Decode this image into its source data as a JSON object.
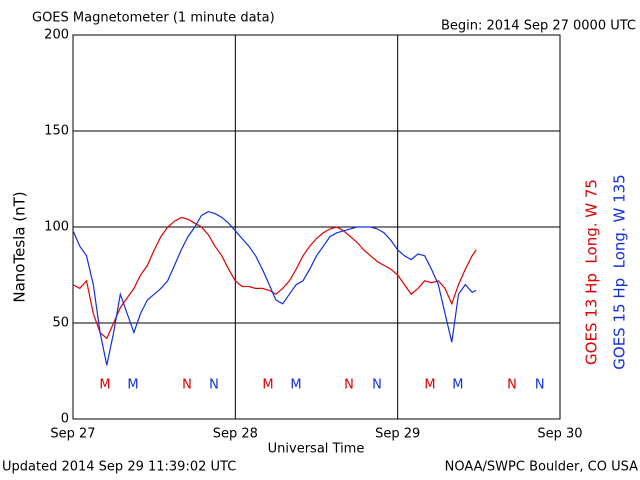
{
  "chart_data": {
    "type": "line",
    "title": "GOES Magnetometer (1 minute data)",
    "subtitle": "Begin:  2014 Sep 27 0000 UTC",
    "ylabel": "NanoTesla (nT)",
    "xlabel": "Universal Time",
    "footer_left": "Updated 2014 Sep 29 11:39:02 UTC",
    "footer_right": "NOAA/SWPC Boulder, CO USA",
    "xlim": [
      0,
      72
    ],
    "xticks": [
      {
        "value": 0,
        "label": "Sep 27"
      },
      {
        "value": 24,
        "label": "Sep 28"
      },
      {
        "value": 48,
        "label": "Sep 29"
      },
      {
        "value": 72,
        "label": "Sep 30"
      }
    ],
    "ylim": [
      0,
      200
    ],
    "yticks": [
      0,
      50,
      100,
      150,
      200
    ],
    "grid": true,
    "series": [
      {
        "name": "GOES 13 Hp  Long. W 75",
        "color": "#e00000",
        "x": [
          0,
          1,
          2,
          3,
          4,
          5,
          6,
          7,
          8,
          9,
          10,
          11,
          12,
          13,
          14,
          15,
          16,
          17,
          18,
          19,
          20,
          21,
          22,
          23,
          24,
          25,
          26,
          27,
          28,
          29,
          30,
          31,
          32,
          33,
          34,
          35,
          36,
          37,
          38,
          39,
          40,
          41,
          42,
          43,
          44,
          45,
          46,
          47,
          48,
          49,
          50,
          51,
          52,
          53,
          54,
          55,
          56,
          57,
          58,
          59,
          59.6
        ],
        "values": [
          70,
          68,
          72,
          55,
          45,
          42,
          50,
          58,
          63,
          68,
          75,
          80,
          88,
          95,
          100,
          103,
          105,
          104,
          102,
          100,
          96,
          90,
          85,
          78,
          72,
          69,
          69,
          68,
          68,
          67,
          65,
          68,
          72,
          78,
          85,
          90,
          94,
          97,
          99,
          100,
          98,
          95,
          92,
          88,
          85,
          82,
          80,
          78,
          75,
          70,
          65,
          68,
          72,
          71,
          72,
          68,
          60,
          70,
          78,
          85,
          88
        ]
      },
      {
        "name": "GOES 15 Hp  Long. W 135",
        "color": "#1030e0",
        "x": [
          0,
          1,
          2,
          3,
          4,
          5,
          6,
          7,
          8,
          9,
          10,
          11,
          12,
          13,
          14,
          15,
          16,
          17,
          18,
          19,
          20,
          21,
          22,
          23,
          24,
          25,
          26,
          27,
          28,
          29,
          30,
          31,
          32,
          33,
          34,
          35,
          36,
          37,
          38,
          39,
          40,
          41,
          42,
          43,
          44,
          45,
          46,
          47,
          48,
          49,
          50,
          51,
          52,
          53,
          54,
          55,
          56,
          57,
          58,
          59,
          59.6
        ],
        "values": [
          98,
          90,
          85,
          70,
          45,
          28,
          45,
          65,
          55,
          45,
          55,
          62,
          65,
          68,
          72,
          80,
          88,
          95,
          100,
          106,
          108,
          107,
          105,
          102,
          98,
          94,
          90,
          85,
          78,
          70,
          62,
          60,
          65,
          70,
          72,
          78,
          85,
          90,
          95,
          97,
          98,
          99,
          100,
          100,
          100,
          99,
          97,
          93,
          88,
          85,
          83,
          86,
          85,
          78,
          70,
          55,
          40,
          65,
          70,
          66,
          67
        ]
      }
    ],
    "markers": [
      {
        "label": "M",
        "x": 4.73,
        "series": 0
      },
      {
        "label": "N",
        "x": 16.85,
        "series": 0
      },
      {
        "label": "M",
        "x": 28.83,
        "series": 0
      },
      {
        "label": "N",
        "x": 40.8,
        "series": 0
      },
      {
        "label": "M",
        "x": 52.78,
        "series": 0
      },
      {
        "label": "N",
        "x": 64.9,
        "series": 0
      },
      {
        "label": "M",
        "x": 8.87,
        "series": 1
      },
      {
        "label": "N",
        "x": 20.85,
        "series": 1
      },
      {
        "label": "M",
        "x": 32.97,
        "series": 1
      },
      {
        "label": "N",
        "x": 44.94,
        "series": 1
      },
      {
        "label": "M",
        "x": 56.9,
        "series": 1
      },
      {
        "label": "N",
        "x": 69.0,
        "series": 1
      }
    ]
  }
}
